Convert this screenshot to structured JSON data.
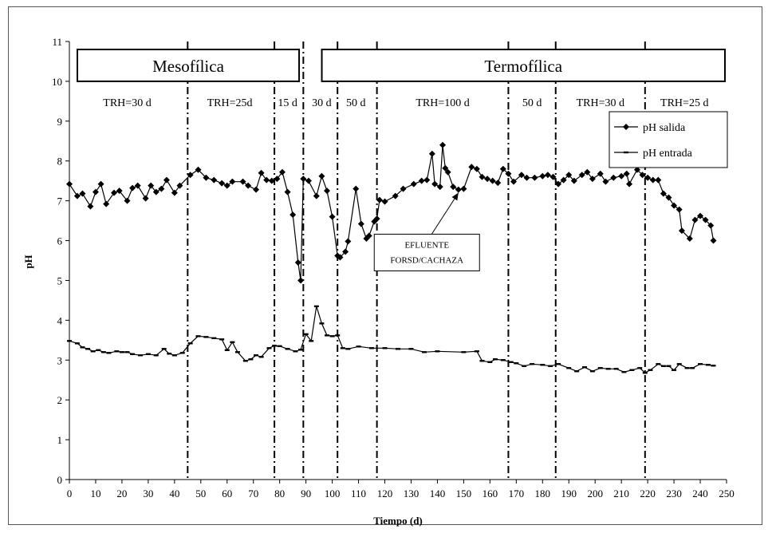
{
  "chart_data": {
    "type": "line",
    "xlabel": "Tiempo (d)",
    "ylabel": "pH",
    "xlim": [
      0,
      250
    ],
    "ylim": [
      0,
      11
    ],
    "xticks": [
      0,
      10,
      20,
      30,
      40,
      50,
      60,
      70,
      80,
      90,
      100,
      110,
      120,
      130,
      140,
      150,
      160,
      170,
      180,
      190,
      200,
      210,
      220,
      230,
      240,
      250
    ],
    "yticks": [
      0,
      1,
      2,
      3,
      4,
      5,
      6,
      7,
      8,
      9,
      10,
      11
    ],
    "grid": false,
    "legend_position": "top-right",
    "phases": [
      {
        "label": "Mesofílica",
        "x_start": 0,
        "x_end": 88
      },
      {
        "label": "Termofílica",
        "x_start": 93,
        "x_end": 250
      }
    ],
    "period_boundaries": [
      45,
      78,
      89,
      102,
      117,
      167,
      185,
      219
    ],
    "period_labels": [
      {
        "label": "TRH=30 d",
        "x": 22
      },
      {
        "label": "TRH=25d",
        "x": 61
      },
      {
        "label": "15 d",
        "x": 83
      },
      {
        "label": "30 d",
        "x": 96
      },
      {
        "label": "50 d",
        "x": 109
      },
      {
        "label": "TRH=100 d",
        "x": 142
      },
      {
        "label": "50 d",
        "x": 176
      },
      {
        "label": "TRH=30 d",
        "x": 202
      },
      {
        "label": "TRH=25 d",
        "x": 234
      }
    ],
    "annotations": [
      {
        "text": [
          "EFLUENTE",
          "FORSD/CACHAZA"
        ],
        "x": 136,
        "y": 5.8,
        "arrow_to": [
          148,
          7.2
        ]
      }
    ],
    "series": [
      {
        "name": "pH salida",
        "marker": "diamond",
        "points": [
          [
            0,
            7.42
          ],
          [
            3,
            7.12
          ],
          [
            5,
            7.18
          ],
          [
            8,
            6.86
          ],
          [
            10,
            7.22
          ],
          [
            12,
            7.42
          ],
          [
            14,
            6.92
          ],
          [
            17,
            7.2
          ],
          [
            19,
            7.25
          ],
          [
            22,
            7.0
          ],
          [
            24,
            7.32
          ],
          [
            26,
            7.38
          ],
          [
            29,
            7.06
          ],
          [
            31,
            7.38
          ],
          [
            33,
            7.22
          ],
          [
            35,
            7.3
          ],
          [
            37,
            7.52
          ],
          [
            40,
            7.2
          ],
          [
            42,
            7.38
          ],
          [
            46,
            7.65
          ],
          [
            49,
            7.78
          ],
          [
            52,
            7.58
          ],
          [
            55,
            7.52
          ],
          [
            58,
            7.44
          ],
          [
            60,
            7.38
          ],
          [
            62,
            7.48
          ],
          [
            66,
            7.48
          ],
          [
            68,
            7.38
          ],
          [
            71,
            7.28
          ],
          [
            73,
            7.7
          ],
          [
            75,
            7.52
          ],
          [
            77,
            7.5
          ],
          [
            79,
            7.55
          ],
          [
            81,
            7.72
          ],
          [
            83,
            7.22
          ],
          [
            85,
            6.65
          ],
          [
            87,
            5.45
          ],
          [
            88,
            5.0
          ],
          [
            89,
            7.55
          ],
          [
            91,
            7.5
          ],
          [
            94,
            7.12
          ],
          [
            96,
            7.62
          ],
          [
            98,
            7.25
          ],
          [
            100,
            6.6
          ],
          [
            102,
            5.62
          ],
          [
            103,
            5.58
          ],
          [
            105,
            5.72
          ],
          [
            106,
            5.98
          ],
          [
            109,
            7.3
          ],
          [
            111,
            6.42
          ],
          [
            113,
            6.05
          ],
          [
            114,
            6.12
          ],
          [
            116,
            6.48
          ],
          [
            117,
            6.55
          ],
          [
            118,
            7.02
          ],
          [
            120,
            6.98
          ],
          [
            124,
            7.12
          ],
          [
            127,
            7.3
          ],
          [
            131,
            7.42
          ],
          [
            134,
            7.5
          ],
          [
            136,
            7.52
          ],
          [
            138,
            8.18
          ],
          [
            139,
            7.42
          ],
          [
            141,
            7.35
          ],
          [
            142,
            8.4
          ],
          [
            143,
            7.82
          ],
          [
            144,
            7.72
          ],
          [
            146,
            7.35
          ],
          [
            148,
            7.28
          ],
          [
            150,
            7.3
          ],
          [
            153,
            7.85
          ],
          [
            155,
            7.8
          ],
          [
            157,
            7.6
          ],
          [
            159,
            7.55
          ],
          [
            161,
            7.5
          ],
          [
            163,
            7.45
          ],
          [
            165,
            7.8
          ],
          [
            167,
            7.68
          ],
          [
            169,
            7.48
          ],
          [
            172,
            7.65
          ],
          [
            174,
            7.58
          ],
          [
            177,
            7.58
          ],
          [
            180,
            7.62
          ],
          [
            182,
            7.65
          ],
          [
            184,
            7.6
          ],
          [
            186,
            7.42
          ],
          [
            188,
            7.52
          ],
          [
            190,
            7.65
          ],
          [
            192,
            7.5
          ],
          [
            195,
            7.65
          ],
          [
            197,
            7.72
          ],
          [
            199,
            7.55
          ],
          [
            202,
            7.68
          ],
          [
            204,
            7.48
          ],
          [
            207,
            7.58
          ],
          [
            210,
            7.62
          ],
          [
            212,
            7.68
          ],
          [
            213,
            7.42
          ],
          [
            216,
            7.78
          ],
          [
            218,
            7.65
          ],
          [
            220,
            7.58
          ],
          [
            222,
            7.52
          ],
          [
            224,
            7.52
          ],
          [
            226,
            7.18
          ],
          [
            228,
            7.08
          ],
          [
            230,
            6.88
          ],
          [
            232,
            6.78
          ],
          [
            233,
            6.25
          ],
          [
            236,
            6.05
          ],
          [
            238,
            6.52
          ],
          [
            240,
            6.62
          ],
          [
            242,
            6.52
          ],
          [
            244,
            6.38
          ],
          [
            245,
            6.0
          ]
        ]
      },
      {
        "name": "pH entrada",
        "marker": "dash",
        "points": [
          [
            0,
            3.48
          ],
          [
            3,
            3.42
          ],
          [
            5,
            3.32
          ],
          [
            7,
            3.28
          ],
          [
            9,
            3.22
          ],
          [
            11,
            3.25
          ],
          [
            13,
            3.2
          ],
          [
            15,
            3.18
          ],
          [
            18,
            3.22
          ],
          [
            20,
            3.2
          ],
          [
            22,
            3.2
          ],
          [
            24,
            3.15
          ],
          [
            27,
            3.12
          ],
          [
            30,
            3.15
          ],
          [
            33,
            3.12
          ],
          [
            36,
            3.28
          ],
          [
            38,
            3.16
          ],
          [
            40,
            3.12
          ],
          [
            43,
            3.18
          ],
          [
            46,
            3.42
          ],
          [
            49,
            3.6
          ],
          [
            52,
            3.58
          ],
          [
            55,
            3.55
          ],
          [
            58,
            3.52
          ],
          [
            60,
            3.25
          ],
          [
            62,
            3.45
          ],
          [
            64,
            3.2
          ],
          [
            67,
            2.98
          ],
          [
            69,
            3.02
          ],
          [
            71,
            3.12
          ],
          [
            73,
            3.08
          ],
          [
            76,
            3.3
          ],
          [
            78,
            3.36
          ],
          [
            80,
            3.35
          ],
          [
            83,
            3.28
          ],
          [
            86,
            3.22
          ],
          [
            88,
            3.26
          ],
          [
            90,
            3.65
          ],
          [
            92,
            3.48
          ],
          [
            94,
            4.35
          ],
          [
            96,
            3.92
          ],
          [
            98,
            3.62
          ],
          [
            100,
            3.6
          ],
          [
            102,
            3.62
          ],
          [
            104,
            3.3
          ],
          [
            106,
            3.28
          ],
          [
            110,
            3.34
          ],
          [
            115,
            3.3
          ],
          [
            120,
            3.3
          ],
          [
            125,
            3.28
          ],
          [
            130,
            3.28
          ],
          [
            135,
            3.2
          ],
          [
            140,
            3.22
          ],
          [
            150,
            3.2
          ],
          [
            155,
            3.22
          ],
          [
            157,
            2.98
          ],
          [
            160,
            2.95
          ],
          [
            162,
            3.02
          ],
          [
            165,
            3.0
          ],
          [
            168,
            2.95
          ],
          [
            170,
            2.92
          ],
          [
            173,
            2.85
          ],
          [
            176,
            2.9
          ],
          [
            180,
            2.88
          ],
          [
            183,
            2.85
          ],
          [
            186,
            2.9
          ],
          [
            190,
            2.8
          ],
          [
            193,
            2.72
          ],
          [
            196,
            2.82
          ],
          [
            199,
            2.72
          ],
          [
            202,
            2.8
          ],
          [
            205,
            2.78
          ],
          [
            208,
            2.78
          ],
          [
            211,
            2.7
          ],
          [
            214,
            2.75
          ],
          [
            217,
            2.8
          ],
          [
            219,
            2.68
          ],
          [
            221,
            2.75
          ],
          [
            224,
            2.9
          ],
          [
            226,
            2.85
          ],
          [
            228,
            2.85
          ],
          [
            230,
            2.75
          ],
          [
            232,
            2.9
          ],
          [
            235,
            2.8
          ],
          [
            237,
            2.8
          ],
          [
            240,
            2.9
          ],
          [
            243,
            2.88
          ],
          [
            245,
            2.86
          ]
        ]
      }
    ]
  }
}
